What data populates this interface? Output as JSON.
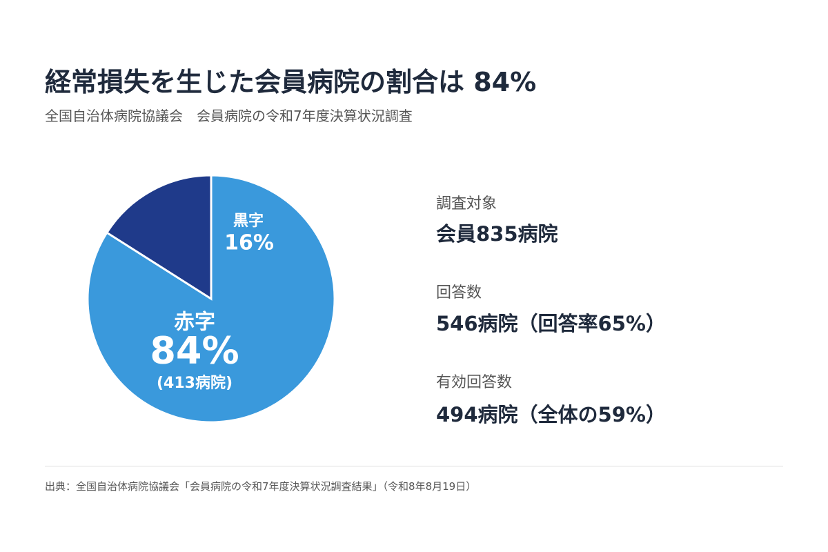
{
  "chart_data": {
    "type": "pie",
    "title": "経常損失を生じた会員病院の割合は 84%",
    "subtitle": "全国自治体病院協議会　会員病院の令和7年度決算状況調査",
    "categories": [
      "赤字",
      "黒字"
    ],
    "values": [
      84,
      16
    ],
    "value_labels": [
      "84%",
      "16%"
    ],
    "colors": [
      "#3a99dc",
      "#1f3a8a"
    ],
    "annotations": [
      "(413病院)"
    ]
  },
  "stats": [
    {
      "label": "調査対象",
      "value": "会員835病院"
    },
    {
      "label": "回答数",
      "value": "546病院（回答率65%）"
    },
    {
      "label": "有効回答数",
      "value": "494病院（全体の59%）"
    }
  ],
  "source": "出典：全国自治体病院協議会「会員病院の令和7年度決算状況調査結果」（令和8年8月19日）"
}
